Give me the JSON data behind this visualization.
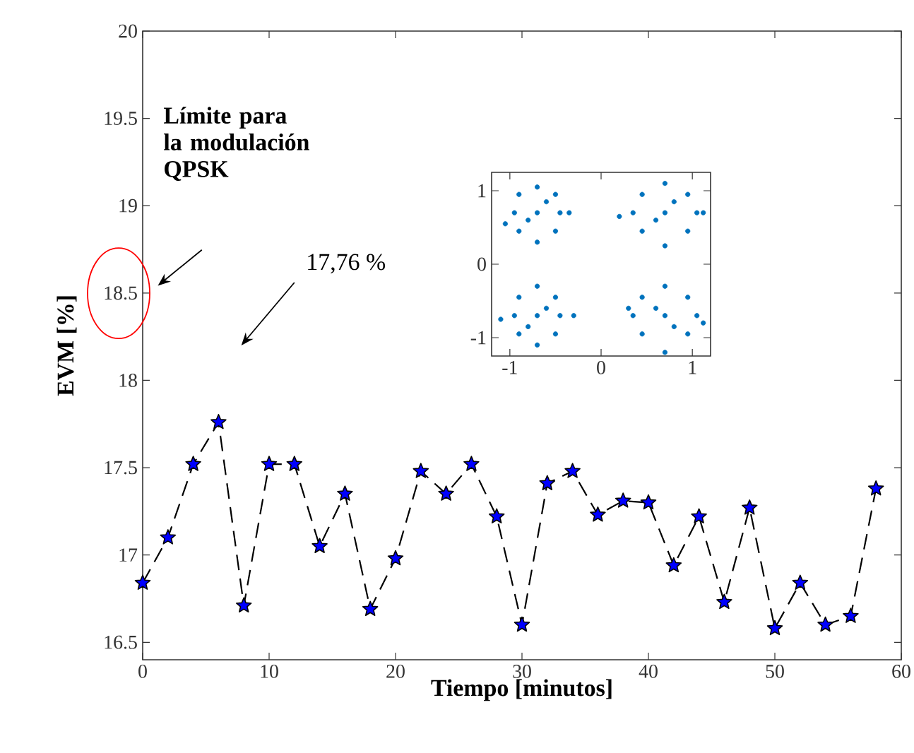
{
  "chart_data": [
    {
      "type": "line",
      "xlabel": "Tiempo [minutos]",
      "ylabel": "EVM [%]",
      "x": [
        0,
        2,
        4,
        6,
        8,
        10,
        12,
        14,
        16,
        18,
        20,
        22,
        24,
        26,
        28,
        30,
        32,
        34,
        36,
        38,
        40,
        42,
        44,
        46,
        48,
        50,
        52,
        54,
        56,
        58
      ],
      "series": [
        {
          "color": "#0000ff",
          "values": [
            16.84,
            17.1,
            17.52,
            17.76,
            16.71,
            17.52,
            17.52,
            17.05,
            17.35,
            16.69,
            16.98,
            17.48,
            17.35,
            17.52,
            17.22,
            16.6,
            17.41,
            17.48,
            17.23,
            17.31,
            17.3,
            16.94,
            17.22,
            16.73,
            17.27,
            16.58,
            16.84,
            16.6,
            16.65,
            17.38
          ]
        }
      ],
      "marker": "star",
      "line_style": "dashed",
      "xlim": [
        0,
        60
      ],
      "ylim": [
        16.4,
        20
      ],
      "xticks": [
        0,
        10,
        20,
        30,
        40,
        50,
        60
      ],
      "yticks": [
        16.5,
        17,
        17.5,
        18,
        18.5,
        19,
        19.5,
        20
      ],
      "annotations": [
        "**Límite para la modulación QPSK**",
        "17,76 %"
      ]
    },
    {
      "type": "scatter",
      "marker": "circle",
      "x": [
        -0.95,
        -0.7,
        -0.45,
        -0.7,
        -0.7,
        -0.9,
        -0.5,
        -0.9,
        -0.5,
        -0.35,
        -1.05,
        -0.6,
        -0.8,
        0.35,
        0.7,
        1.05,
        0.7,
        0.7,
        0.45,
        0.95,
        0.45,
        0.95,
        1.12,
        0.2,
        0.8,
        0.6,
        -0.95,
        -0.7,
        -0.45,
        -0.7,
        -0.7,
        -0.9,
        -0.5,
        -0.9,
        -0.5,
        -0.3,
        -1.1,
        -0.6,
        -0.8,
        0.35,
        0.7,
        1.05,
        0.7,
        0.7,
        0.45,
        0.95,
        0.45,
        0.95,
        1.12,
        0.3,
        0.8,
        0.6
      ],
      "series": [
        {
          "color": "#0072bd",
          "values": [
            0.7,
            0.7,
            0.7,
            1.05,
            0.3,
            0.95,
            0.95,
            0.45,
            0.45,
            0.7,
            0.55,
            0.85,
            0.6,
            0.7,
            0.7,
            0.7,
            1.1,
            0.25,
            0.95,
            0.95,
            0.45,
            0.45,
            0.7,
            0.65,
            0.85,
            0.6,
            -0.7,
            -0.7,
            -0.7,
            -0.3,
            -1.1,
            -0.45,
            -0.45,
            -0.95,
            -0.95,
            -0.7,
            -0.75,
            -0.6,
            -0.85,
            -0.7,
            -0.7,
            -0.7,
            -0.3,
            -1.2,
            -0.45,
            -0.45,
            -0.95,
            -0.95,
            -0.8,
            -0.6,
            -0.85,
            -0.6
          ]
        }
      ],
      "xlim": [
        -1.2,
        1.2
      ],
      "ylim": [
        -1.25,
        1.25
      ],
      "xticks": [
        -1,
        0,
        1
      ],
      "yticks": [
        -1,
        0,
        1
      ]
    }
  ]
}
